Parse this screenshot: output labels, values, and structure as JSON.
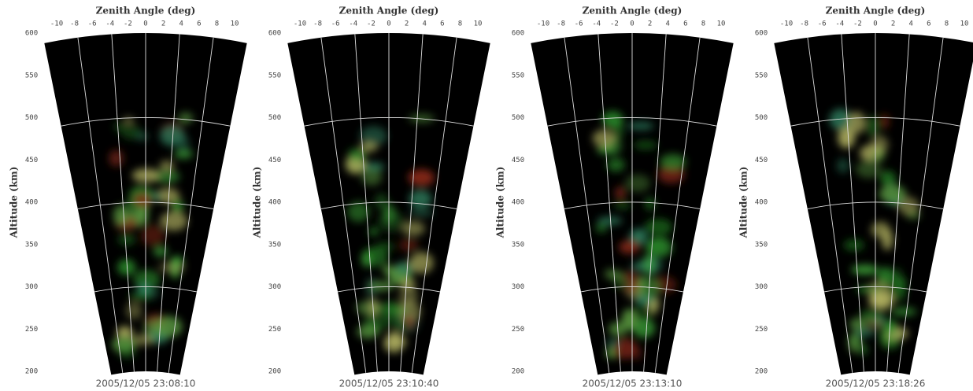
{
  "chart_data": [
    {
      "type": "fan",
      "title": "Zenith Angle (deg)",
      "ylabel": "Altitude (km)",
      "timestamp": "2005/12/05  23:08:10",
      "xlim": [
        -10,
        10
      ],
      "xticks": [
        -10,
        -8,
        -6,
        -4,
        -2,
        0,
        2,
        4,
        6,
        8,
        10
      ],
      "ylim": [
        200,
        600
      ],
      "yticks": [
        200,
        250,
        300,
        350,
        400,
        450,
        500,
        550,
        600
      ],
      "grid": true
    },
    {
      "type": "fan",
      "title": "Zenith Angle (deg)",
      "ylabel": "Altitude (km)",
      "timestamp": "2005/12/05  23:10:40",
      "xlim": [
        -10,
        10
      ],
      "xticks": [
        -10,
        -8,
        -6,
        -4,
        -2,
        0,
        2,
        4,
        6,
        8,
        10
      ],
      "ylim": [
        200,
        600
      ],
      "yticks": [
        200,
        250,
        300,
        350,
        400,
        450,
        500,
        550,
        600
      ],
      "grid": true
    },
    {
      "type": "fan",
      "title": "Zenith Angle (deg)",
      "ylabel": "Altitude (km)",
      "timestamp": "2005/12/05  23:13:10",
      "xlim": [
        -10,
        10
      ],
      "xticks": [
        -10,
        -8,
        -6,
        -4,
        -2,
        0,
        2,
        4,
        6,
        8,
        10
      ],
      "ylim": [
        200,
        600
      ],
      "yticks": [
        200,
        250,
        300,
        350,
        400,
        450,
        500,
        550,
        600
      ],
      "grid": true
    },
    {
      "type": "fan",
      "title": "Zenith Angle (deg)",
      "ylabel": "Altitude (km)",
      "timestamp": "2005/12/05  23:18:26",
      "xlim": [
        -10,
        10
      ],
      "xticks": [
        -10,
        -8,
        -6,
        -4,
        -2,
        0,
        2,
        4,
        6,
        8,
        10
      ],
      "ylim": [
        200,
        600
      ],
      "yticks": [
        200,
        250,
        300,
        350,
        400,
        450,
        500,
        550,
        600
      ],
      "grid": true
    }
  ]
}
